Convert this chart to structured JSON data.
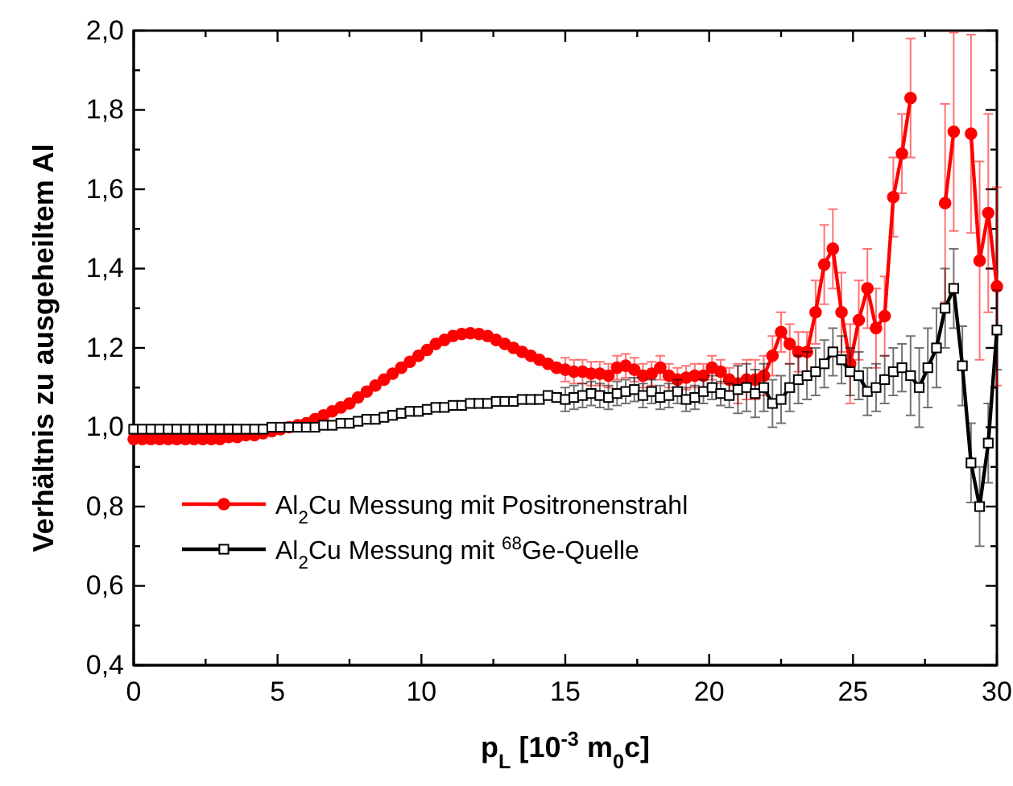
{
  "chart_data": {
    "type": "line",
    "xlabel": "p$_{L}$ [10$^{-3}$ m$_{0}$c]",
    "ylabel": "Verhältnis zu ausgeheiltem Al",
    "x": [
      0,
      0.3,
      0.6,
      0.9,
      1.2,
      1.5,
      1.8,
      2.1,
      2.4,
      2.7,
      3,
      3.3,
      3.6,
      3.9,
      4.2,
      4.5,
      4.8,
      5.1,
      5.4,
      5.7,
      6,
      6.3,
      6.6,
      6.9,
      7.2,
      7.5,
      7.8,
      8.1,
      8.4,
      8.7,
      9,
      9.3,
      9.6,
      9.9,
      10.2,
      10.5,
      10.8,
      11.1,
      11.4,
      11.7,
      12,
      12.3,
      12.6,
      12.9,
      13.2,
      13.5,
      13.8,
      14.1,
      14.4,
      14.7,
      15,
      15.3,
      15.6,
      15.9,
      16.2,
      16.5,
      16.8,
      17.1,
      17.4,
      17.7,
      18,
      18.3,
      18.6,
      18.9,
      19.2,
      19.5,
      19.8,
      20.1,
      20.4,
      20.7,
      21,
      21.3,
      21.6,
      21.9,
      22.2,
      22.5,
      22.8,
      23.1,
      23.4,
      23.7,
      24,
      24.3,
      24.6,
      24.9,
      25.2,
      25.5,
      25.8,
      26.1,
      26.4,
      26.7,
      27,
      27.3,
      27.6,
      27.9,
      28.2,
      28.5,
      28.8,
      29.1,
      29.4,
      29.7,
      30
    ],
    "series": [
      {
        "name": "Al$_{2}$Cu Messung mit Positronenstrahl",
        "color": "#ff0000",
        "marker": "circle",
        "values": [
          0.97,
          0.97,
          0.97,
          0.97,
          0.97,
          0.97,
          0.97,
          0.97,
          0.97,
          0.97,
          0.97,
          0.975,
          0.975,
          0.98,
          0.98,
          0.985,
          0.99,
          0.995,
          1.0,
          1.005,
          1.01,
          1.02,
          1.03,
          1.04,
          1.05,
          1.06,
          1.075,
          1.09,
          1.105,
          1.12,
          1.135,
          1.15,
          1.165,
          1.18,
          1.195,
          1.21,
          1.22,
          1.23,
          1.235,
          1.237,
          1.235,
          1.23,
          1.22,
          1.21,
          1.2,
          1.19,
          1.18,
          1.17,
          1.16,
          1.15,
          1.145,
          1.14,
          1.14,
          1.135,
          1.135,
          1.13,
          1.15,
          1.155,
          1.145,
          1.13,
          1.135,
          1.15,
          1.13,
          1.12,
          1.125,
          1.13,
          1.13,
          1.15,
          1.14,
          1.12,
          1.11,
          1.12,
          1.12,
          1.13,
          1.18,
          1.24,
          1.21,
          1.19,
          1.19,
          1.29,
          1.41,
          1.45,
          1.29,
          1.16,
          1.27,
          1.35,
          1.25,
          1.28,
          1.58,
          1.69,
          1.83,
          null,
          null,
          null,
          1.565,
          1.745,
          null,
          1.74,
          1.42,
          1.54,
          1.355
        ],
        "errors": [
          null,
          null,
          null,
          null,
          null,
          null,
          null,
          null,
          null,
          null,
          null,
          null,
          null,
          null,
          null,
          null,
          null,
          null,
          null,
          null,
          null,
          null,
          null,
          null,
          null,
          null,
          null,
          null,
          null,
          null,
          null,
          null,
          null,
          null,
          null,
          null,
          null,
          null,
          null,
          null,
          null,
          null,
          null,
          null,
          null,
          null,
          null,
          null,
          null,
          null,
          0.03,
          0.03,
          0.03,
          0.03,
          0.03,
          0.03,
          0.03,
          0.03,
          0.03,
          0.03,
          0.03,
          0.03,
          0.03,
          0.03,
          0.03,
          0.03,
          0.03,
          0.03,
          0.03,
          0.03,
          0.05,
          0.05,
          0.05,
          0.05,
          0.05,
          0.05,
          0.05,
          0.05,
          0.05,
          0.08,
          0.1,
          0.1,
          0.1,
          0.1,
          0.1,
          0.1,
          0.1,
          0.1,
          0.1,
          0.1,
          0.15,
          null,
          null,
          null,
          0.25,
          0.25,
          null,
          0.25,
          0.25,
          0.25,
          0.25
        ]
      },
      {
        "name": "Al$_{2}$Cu Messung mit $^{68}$Ge-Quelle",
        "color": "#000000",
        "marker": "square",
        "values": [
          0.995,
          0.995,
          0.995,
          0.995,
          0.995,
          0.995,
          0.995,
          0.995,
          0.995,
          0.995,
          0.995,
          0.995,
          0.995,
          0.995,
          0.995,
          0.995,
          1.0,
          1.0,
          1.0,
          1.0,
          1.0,
          1.0,
          1.005,
          1.005,
          1.01,
          1.01,
          1.015,
          1.02,
          1.02,
          1.025,
          1.03,
          1.035,
          1.04,
          1.04,
          1.045,
          1.05,
          1.05,
          1.055,
          1.055,
          1.06,
          1.06,
          1.06,
          1.065,
          1.065,
          1.065,
          1.07,
          1.07,
          1.07,
          1.08,
          1.075,
          1.07,
          1.075,
          1.08,
          1.085,
          1.08,
          1.075,
          1.085,
          1.09,
          1.095,
          1.08,
          1.09,
          1.075,
          1.08,
          1.09,
          1.07,
          1.075,
          1.09,
          1.1,
          1.085,
          1.08,
          1.095,
          1.1,
          1.085,
          1.1,
          1.06,
          1.07,
          1.1,
          1.12,
          1.13,
          1.14,
          1.16,
          1.19,
          1.17,
          1.14,
          1.13,
          1.09,
          1.1,
          1.12,
          1.14,
          1.15,
          1.13,
          1.1,
          1.15,
          1.2,
          1.3,
          1.35,
          1.155,
          0.91,
          0.8,
          0.96,
          1.245
        ],
        "errors": [
          null,
          null,
          null,
          null,
          null,
          null,
          null,
          null,
          null,
          null,
          null,
          null,
          null,
          null,
          null,
          null,
          null,
          null,
          null,
          null,
          null,
          null,
          null,
          null,
          null,
          null,
          null,
          null,
          null,
          null,
          null,
          null,
          null,
          null,
          null,
          null,
          null,
          null,
          null,
          null,
          null,
          null,
          null,
          null,
          null,
          null,
          null,
          null,
          null,
          null,
          0.03,
          0.03,
          0.03,
          0.03,
          0.03,
          0.03,
          0.03,
          0.03,
          0.03,
          0.03,
          0.03,
          0.03,
          0.03,
          0.03,
          0.03,
          0.03,
          0.03,
          0.03,
          0.03,
          0.03,
          0.06,
          0.06,
          0.06,
          0.06,
          0.06,
          0.06,
          0.06,
          0.06,
          0.06,
          0.06,
          0.06,
          0.06,
          0.06,
          0.06,
          0.06,
          0.06,
          0.06,
          0.06,
          0.06,
          0.06,
          0.1,
          0.1,
          0.1,
          0.1,
          0.1,
          0.1,
          0.1,
          0.1,
          0.1,
          0.1,
          0.1
        ]
      }
    ],
    "xlim": [
      0,
      30
    ],
    "xticks": [
      0,
      {
        "value": 2.5,
        "label": null
      },
      5,
      {
        "value": 7.5,
        "label": null
      },
      10,
      {
        "value": 12.5,
        "label": null
      },
      15,
      {
        "value": 17.5,
        "label": null
      },
      20,
      {
        "value": 22.5,
        "label": null
      },
      25,
      {
        "value": 27.5,
        "label": null
      },
      30
    ],
    "ylim": [
      0.4,
      2.0
    ],
    "yticks": [
      {
        "value": 0.4,
        "label": "0,4"
      },
      {
        "value": 0.5,
        "label": null
      },
      {
        "value": 0.6,
        "label": "0,6"
      },
      {
        "value": 0.7,
        "label": null
      },
      {
        "value": 0.8,
        "label": "0,8"
      },
      {
        "value": 0.9,
        "label": null
      },
      {
        "value": 1.0,
        "label": "1,0"
      },
      {
        "value": 1.1,
        "label": null
      },
      {
        "value": 1.2,
        "label": "1,2"
      },
      {
        "value": 1.3,
        "label": null
      },
      {
        "value": 1.4,
        "label": "1,4"
      },
      {
        "value": 1.5,
        "label": null
      },
      {
        "value": 1.6,
        "label": "1,6"
      },
      {
        "value": 1.7,
        "label": null
      },
      {
        "value": 1.8,
        "label": "1,8"
      },
      {
        "value": 1.9,
        "label": null
      },
      {
        "value": 2.0,
        "label": "2,0"
      }
    ],
    "grid": false,
    "legend": "bottom left",
    "line_style": "solid"
  }
}
